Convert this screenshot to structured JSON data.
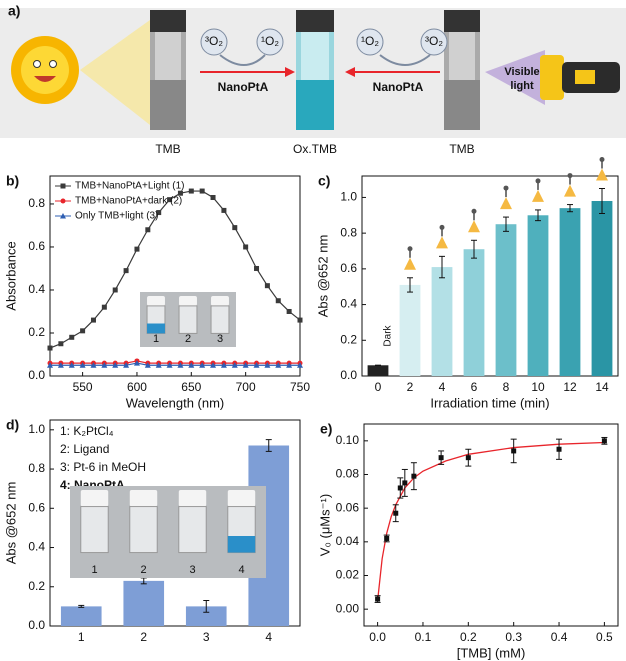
{
  "scheme": {
    "label": "a)",
    "left_substrate": "TMB",
    "product": "Ox.TMB",
    "right_substrate": "TMB",
    "catalyst_left": "NanoPtA",
    "catalyst_right": "NanoPtA",
    "oxygen_left": [
      "³O₂",
      "¹O₂"
    ],
    "oxygen_right": [
      "¹O₂",
      "³O₂"
    ],
    "light_label": [
      "Visible",
      "light"
    ]
  },
  "chart_data": [
    {
      "type": "line",
      "label": "b)",
      "xlabel": "Wavelength (nm)",
      "ylabel": "Absorbance",
      "x": [
        520,
        530,
        540,
        550,
        560,
        570,
        580,
        590,
        600,
        610,
        620,
        630,
        640,
        650,
        660,
        670,
        680,
        690,
        700,
        710,
        720,
        730,
        740,
        750
      ],
      "xlim": [
        520,
        750
      ],
      "xticks": [
        550,
        600,
        650,
        700,
        750
      ],
      "ylim": [
        0,
        0.93
      ],
      "yticks": [
        {
          "value": 0,
          "label": "0.0"
        },
        {
          "value": 0.2,
          "label": "0.2"
        },
        {
          "value": 0.4,
          "label": "0.4"
        },
        {
          "value": 0.6,
          "label": "0.6"
        },
        {
          "value": 0.8,
          "label": "0.8"
        }
      ],
      "legend": "upper left",
      "series": [
        {
          "name": "TMB+NanoPtA+Light (1)",
          "color": "#3a3a3a",
          "marker": "square",
          "values": [
            0.13,
            0.15,
            0.18,
            0.21,
            0.26,
            0.32,
            0.4,
            0.49,
            0.59,
            0.68,
            0.76,
            0.82,
            0.85,
            0.86,
            0.86,
            0.83,
            0.77,
            0.69,
            0.6,
            0.5,
            0.42,
            0.35,
            0.3,
            0.26
          ]
        },
        {
          "name": "TMB+NanoPtA+dark (2)",
          "color": "#e8252b",
          "marker": "circle",
          "values": [
            0.06,
            0.06,
            0.06,
            0.06,
            0.06,
            0.06,
            0.06,
            0.06,
            0.07,
            0.06,
            0.06,
            0.06,
            0.06,
            0.06,
            0.06,
            0.06,
            0.06,
            0.06,
            0.06,
            0.06,
            0.06,
            0.06,
            0.06,
            0.06
          ]
        },
        {
          "name": "Only TMB+light (3)",
          "color": "#2f5fb3",
          "marker": "triangle",
          "values": [
            0.05,
            0.05,
            0.05,
            0.05,
            0.05,
            0.05,
            0.05,
            0.05,
            0.06,
            0.05,
            0.05,
            0.05,
            0.05,
            0.05,
            0.05,
            0.05,
            0.05,
            0.05,
            0.05,
            0.05,
            0.05,
            0.05,
            0.05,
            0.05
          ]
        }
      ],
      "inset_labels": [
        "1",
        "2",
        "3"
      ]
    },
    {
      "type": "bar",
      "label": "c)",
      "xlabel": "Irradiation time (min)",
      "ylabel": "Abs @652 nm",
      "x": [
        0,
        2,
        4,
        6,
        8,
        10,
        12,
        14
      ],
      "values": [
        0.06,
        0.51,
        0.61,
        0.71,
        0.85,
        0.9,
        0.94,
        0.98
      ],
      "errors": [
        0,
        0.04,
        0.06,
        0.05,
        0.04,
        0.03,
        0.02,
        0.07
      ],
      "colors": [
        "#222222",
        "#d6eef1",
        "#b3e0e6",
        "#8fd0d9",
        "#6cbfca",
        "#4fb0bd",
        "#3aa2b1",
        "#2a95a5"
      ],
      "xlim": [
        -1,
        15
      ],
      "xticks": [
        0,
        2,
        4,
        6,
        8,
        10,
        12,
        14
      ],
      "ylim": [
        0,
        1.12
      ],
      "yticks": [
        {
          "value": 0,
          "label": "0.0"
        },
        {
          "value": 0.2,
          "label": "0.2"
        },
        {
          "value": 0.4,
          "label": "0.4"
        },
        {
          "value": 0.6,
          "label": "0.6"
        },
        {
          "value": 0.8,
          "label": "0.8"
        },
        {
          "value": 1,
          "label": "1.0"
        }
      ],
      "annotation": "Dark"
    },
    {
      "type": "bar",
      "label": "d)",
      "ylabel": "Abs @652 nm",
      "categories": [
        "1",
        "2",
        "3",
        "4"
      ],
      "values": [
        0.1,
        0.23,
        0.1,
        0.92
      ],
      "errors": [
        0.005,
        0.015,
        0.03,
        0.03
      ],
      "color": "#7e9ed6",
      "ylim": [
        0,
        1.05
      ],
      "yticks": [
        {
          "value": 0,
          "label": "0.0"
        },
        {
          "value": 0.2,
          "label": "0.2"
        },
        {
          "value": 0.4,
          "label": "0.4"
        },
        {
          "value": 0.6,
          "label": "0.6"
        },
        {
          "value": 0.8,
          "label": "0.8"
        },
        {
          "value": 1,
          "label": "1.0"
        }
      ],
      "notes": [
        "1: K₂PtCl₄",
        "2: Ligand",
        "3: Pt-6 in MeOH",
        "4: NanoPtA"
      ],
      "inset_labels": [
        "1",
        "2",
        "3",
        "4"
      ]
    },
    {
      "type": "scatter",
      "label": "e)",
      "xlabel": "[TMB] (mM)",
      "ylabel": "V₀ (μMs⁻¹)",
      "xlim": [
        -0.03,
        0.53
      ],
      "xticks": [
        {
          "value": 0,
          "label": "0.0"
        },
        {
          "value": 0.1,
          "label": "0.1"
        },
        {
          "value": 0.2,
          "label": "0.2"
        },
        {
          "value": 0.3,
          "label": "0.3"
        },
        {
          "value": 0.4,
          "label": "0.4"
        },
        {
          "value": 0.5,
          "label": "0.5"
        }
      ],
      "ylim": [
        -0.01,
        0.11
      ],
      "yticks": [
        {
          "value": 0,
          "label": "0.00"
        },
        {
          "value": 0.02,
          "label": "0.02"
        },
        {
          "value": 0.04,
          "label": "0.04"
        },
        {
          "value": 0.06,
          "label": "0.06"
        },
        {
          "value": 0.08,
          "label": "0.08"
        },
        {
          "value": 0.1,
          "label": "0.10"
        }
      ],
      "series": [
        {
          "color": "#e8252b",
          "style": "line",
          "x": [
            0,
            0.01,
            0.02,
            0.03,
            0.04,
            0.06,
            0.08,
            0.1,
            0.15,
            0.2,
            0.3,
            0.4,
            0.5
          ],
          "values": [
            0.005,
            0.03,
            0.045,
            0.055,
            0.062,
            0.072,
            0.078,
            0.082,
            0.088,
            0.092,
            0.096,
            0.098,
            0.099
          ]
        },
        {
          "color": "#111111",
          "style": "points",
          "x": [
            0,
            0.02,
            0.04,
            0.05,
            0.06,
            0.08,
            0.14,
            0.2,
            0.3,
            0.4,
            0.5
          ],
          "values": [
            0.006,
            0.042,
            0.057,
            0.072,
            0.075,
            0.079,
            0.09,
            0.09,
            0.094,
            0.095,
            0.1
          ],
          "errors": [
            0.002,
            0.002,
            0.005,
            0.006,
            0.008,
            0.008,
            0.004,
            0.005,
            0.007,
            0.006,
            0.002
          ]
        }
      ]
    }
  ]
}
